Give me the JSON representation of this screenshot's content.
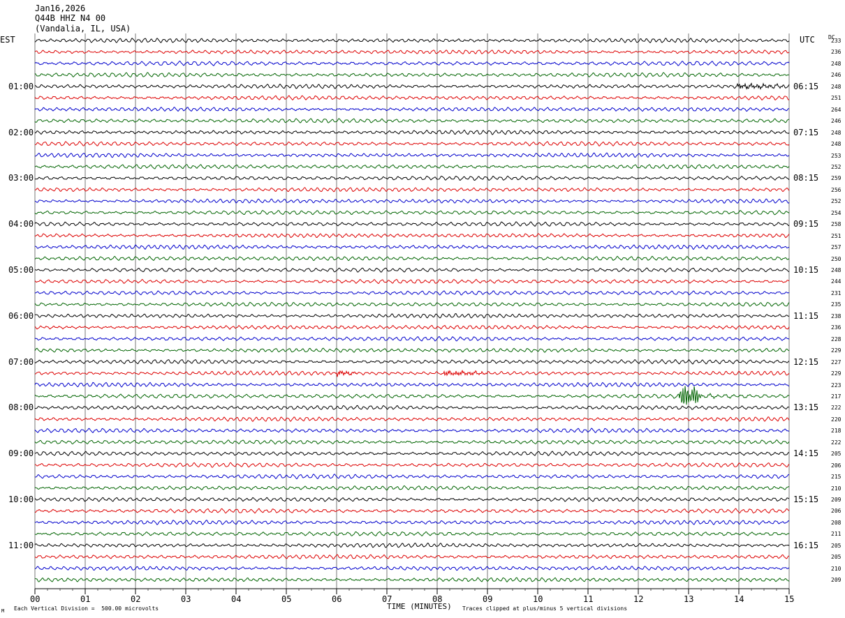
{
  "header": {
    "date": "Jan16,2026",
    "station": "Q44B HHZ N4 00",
    "location": "(Vandalia, IL, USA)"
  },
  "left_axis_label": "EST",
  "right_axis_label": "UTC",
  "dc_label": "DC",
  "footer": {
    "scale_note": "Each Vertical Division =  500.00 microvolts",
    "clip_note": "Traces clipped at plus/minus 5 vertical divisions",
    "corner_mark": "M"
  },
  "chart_data": {
    "type": "line",
    "title": "",
    "xlabel": "TIME (MINUTES)",
    "xlim": [
      0,
      15
    ],
    "x_ticks": [
      "00",
      "01",
      "02",
      "03",
      "04",
      "05",
      "06",
      "07",
      "08",
      "09",
      "10",
      "11",
      "12",
      "13",
      "14",
      "15"
    ],
    "trace_colors": [
      "#000000",
      "#dd0000",
      "#0000cc",
      "#006400"
    ],
    "trace_count": 48,
    "left_time_labels": [
      "01:00",
      "02:00",
      "03:00",
      "04:00",
      "05:00",
      "06:00",
      "07:00",
      "08:00",
      "09:00",
      "10:00",
      "11:00"
    ],
    "right_time_labels": [
      "06:15",
      "07:15",
      "08:15",
      "09:15",
      "10:15",
      "11:15",
      "12:15",
      "13:15",
      "14:15",
      "15:15",
      "16:15"
    ],
    "dc_offsets": [
      233,
      236,
      248,
      246,
      248,
      251,
      264,
      246,
      248,
      248,
      253,
      252,
      259,
      256,
      252,
      254,
      258,
      251,
      257,
      250,
      248,
      244,
      231,
      235,
      238,
      236,
      228,
      229,
      227,
      229,
      223,
      217,
      222,
      220,
      218,
      222,
      205,
      206,
      215,
      210,
      209,
      206,
      208,
      211,
      205,
      205,
      210,
      209
    ],
    "events": [
      {
        "trace": 4,
        "start_min": 13.95,
        "end_min": 14.9,
        "amplitude": "small"
      },
      {
        "trace": 29,
        "start_min": 6.0,
        "end_min": 6.4,
        "amplitude": "small"
      },
      {
        "trace": 29,
        "start_min": 8.1,
        "end_min": 9.0,
        "amplitude": "small"
      },
      {
        "trace": 31,
        "start_min": 12.8,
        "end_min": 14.4,
        "amplitude": "large"
      }
    ]
  }
}
